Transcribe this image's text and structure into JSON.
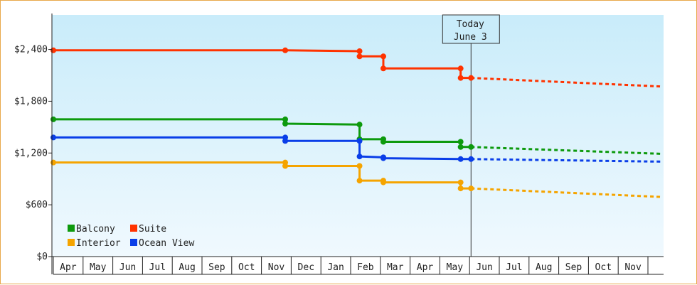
{
  "chart_data": {
    "type": "line",
    "title": "",
    "xlabel": "",
    "ylabel": "",
    "ylim": [
      0,
      2800
    ],
    "yticks": [
      0,
      600,
      1200,
      1800,
      2400
    ],
    "ytick_labels": [
      "$0",
      "$600",
      "$1,200",
      "$1,800",
      "$2,400"
    ],
    "x_months": [
      "Apr",
      "May",
      "Jun",
      "Jul",
      "Aug",
      "Sep",
      "Oct",
      "Nov",
      "Dec",
      "Jan",
      "Feb",
      "Mar",
      "Apr",
      "May",
      "Jun",
      "Jul",
      "Aug",
      "Sep",
      "Oct",
      "Nov"
    ],
    "today_marker": {
      "line1": "Today",
      "line2": "June 3",
      "x": 14.05
    },
    "background": {
      "top": "#c9ecfa",
      "bottom": "#f0f9fe"
    },
    "legend_placement": "bottom-left",
    "series": [
      {
        "name": "Suite",
        "color": "#ff3300",
        "points": [
          [
            0,
            2390
          ],
          [
            7.8,
            2390
          ],
          [
            10.3,
            2380
          ],
          [
            10.3,
            2320
          ],
          [
            11.1,
            2320
          ],
          [
            11.1,
            2180
          ],
          [
            13.7,
            2180
          ],
          [
            13.7,
            2070
          ],
          [
            14.05,
            2070
          ]
        ],
        "projection": [
          [
            14.05,
            2070
          ],
          [
            20.5,
            1970
          ]
        ],
        "markers": [
          [
            0,
            2390
          ],
          [
            7.8,
            2390
          ],
          [
            10.3,
            2380
          ],
          [
            10.3,
            2320
          ],
          [
            11.1,
            2320
          ],
          [
            11.1,
            2180
          ],
          [
            13.7,
            2180
          ],
          [
            13.7,
            2070
          ],
          [
            14.05,
            2070
          ]
        ]
      },
      {
        "name": "Balcony",
        "color": "#0d9a0d",
        "points": [
          [
            0,
            1590
          ],
          [
            7.8,
            1590
          ],
          [
            7.8,
            1540
          ],
          [
            10.3,
            1530
          ],
          [
            10.3,
            1360
          ],
          [
            11.1,
            1360
          ],
          [
            11.1,
            1330
          ],
          [
            13.7,
            1330
          ],
          [
            13.7,
            1270
          ],
          [
            14.05,
            1270
          ]
        ],
        "projection": [
          [
            14.05,
            1270
          ],
          [
            20.5,
            1190
          ]
        ],
        "markers": [
          [
            0,
            1590
          ],
          [
            7.8,
            1590
          ],
          [
            7.8,
            1540
          ],
          [
            10.3,
            1530
          ],
          [
            10.3,
            1360
          ],
          [
            11.1,
            1360
          ],
          [
            11.1,
            1330
          ],
          [
            13.7,
            1330
          ],
          [
            13.7,
            1270
          ],
          [
            14.05,
            1270
          ]
        ]
      },
      {
        "name": "Ocean View",
        "color": "#0a3ee8",
        "points": [
          [
            0,
            1380
          ],
          [
            7.8,
            1380
          ],
          [
            7.8,
            1340
          ],
          [
            10.3,
            1340
          ],
          [
            10.3,
            1160
          ],
          [
            11.1,
            1150
          ],
          [
            11.1,
            1140
          ],
          [
            13.7,
            1130
          ],
          [
            14.05,
            1130
          ]
        ],
        "projection": [
          [
            14.05,
            1130
          ],
          [
            20.5,
            1100
          ]
        ],
        "markers": [
          [
            0,
            1380
          ],
          [
            7.8,
            1380
          ],
          [
            7.8,
            1340
          ],
          [
            10.3,
            1340
          ],
          [
            10.3,
            1160
          ],
          [
            11.1,
            1150
          ],
          [
            11.1,
            1140
          ],
          [
            13.7,
            1130
          ],
          [
            14.05,
            1130
          ]
        ]
      },
      {
        "name": "Interior",
        "color": "#f5a400",
        "points": [
          [
            0,
            1090
          ],
          [
            7.8,
            1090
          ],
          [
            7.8,
            1050
          ],
          [
            10.3,
            1050
          ],
          [
            10.3,
            880
          ],
          [
            11.1,
            880
          ],
          [
            11.1,
            860
          ],
          [
            13.7,
            860
          ],
          [
            13.7,
            790
          ],
          [
            14.05,
            790
          ]
        ],
        "projection": [
          [
            14.05,
            790
          ],
          [
            20.5,
            690
          ]
        ],
        "markers": [
          [
            0,
            1090
          ],
          [
            7.8,
            1090
          ],
          [
            7.8,
            1050
          ],
          [
            10.3,
            1050
          ],
          [
            10.3,
            880
          ],
          [
            11.1,
            880
          ],
          [
            11.1,
            860
          ],
          [
            13.7,
            860
          ],
          [
            13.7,
            790
          ],
          [
            14.05,
            790
          ]
        ]
      }
    ],
    "legend": [
      {
        "name": "Balcony",
        "color": "#0d9a0d"
      },
      {
        "name": "Suite",
        "color": "#ff3300"
      },
      {
        "name": "Interior",
        "color": "#f5a400"
      },
      {
        "name": "Ocean View",
        "color": "#0a3ee8"
      }
    ]
  }
}
